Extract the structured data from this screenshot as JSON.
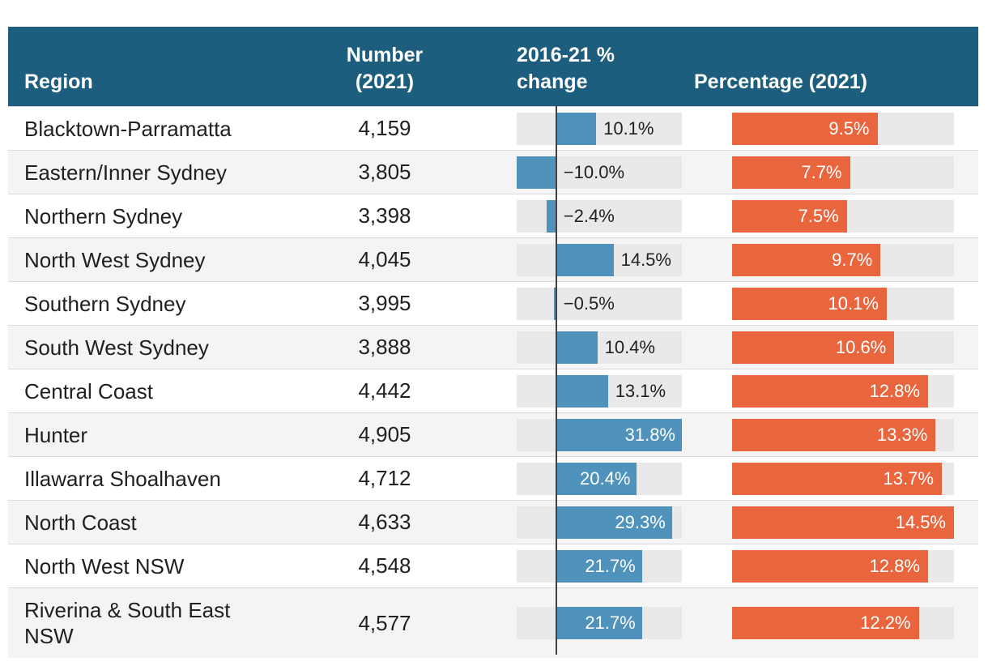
{
  "header": {
    "region": "Region",
    "number_line1": "Number",
    "number_line2": "(2021)",
    "change_line1": "2016-21 %",
    "change_line2": "change",
    "percentage": "Percentage (2021)"
  },
  "rows": [
    {
      "region": "Blacktown-Parramatta",
      "number": "4,159",
      "change": 10.1,
      "change_label": "10.1%",
      "percentage": 9.5,
      "percentage_label": "9.5%"
    },
    {
      "region": "Eastern/Inner Sydney",
      "number": "3,805",
      "change": -10.0,
      "change_label": "−10.0%",
      "percentage": 7.7,
      "percentage_label": "7.7%"
    },
    {
      "region": "Northern Sydney",
      "number": "3,398",
      "change": -2.4,
      "change_label": "−2.4%",
      "percentage": 7.5,
      "percentage_label": "7.5%"
    },
    {
      "region": "North West Sydney",
      "number": "4,045",
      "change": 14.5,
      "change_label": "14.5%",
      "percentage": 9.7,
      "percentage_label": "9.7%"
    },
    {
      "region": "Southern Sydney",
      "number": "3,995",
      "change": -0.5,
      "change_label": "−0.5%",
      "percentage": 10.1,
      "percentage_label": "10.1%"
    },
    {
      "region": "South West Sydney",
      "number": "3,888",
      "change": 10.4,
      "change_label": "10.4%",
      "percentage": 10.6,
      "percentage_label": "10.6%"
    },
    {
      "region": "Central Coast",
      "number": "4,442",
      "change": 13.1,
      "change_label": "13.1%",
      "percentage": 12.8,
      "percentage_label": "12.8%"
    },
    {
      "region": "Hunter",
      "number": "4,905",
      "change": 31.8,
      "change_label": "31.8%",
      "percentage": 13.3,
      "percentage_label": "13.3%"
    },
    {
      "region": "Illawarra Shoalhaven",
      "number": "4,712",
      "change": 20.4,
      "change_label": "20.4%",
      "percentage": 13.7,
      "percentage_label": "13.7%"
    },
    {
      "region": "North Coast",
      "number": "4,633",
      "change": 29.3,
      "change_label": "29.3%",
      "percentage": 14.5,
      "percentage_label": "14.5%"
    },
    {
      "region": "North West NSW",
      "number": "4,548",
      "change": 21.7,
      "change_label": "21.7%",
      "percentage": 12.8,
      "percentage_label": "12.8%"
    },
    {
      "region": "Riverina & South East NSW",
      "number": "4,577",
      "change": 21.7,
      "change_label": "21.7%",
      "percentage": 12.2,
      "percentage_label": "12.2%"
    }
  ],
  "scales": {
    "change_axis": {
      "min": -10.0,
      "max": 31.8,
      "zero_line": true
    },
    "percentage_axis": {
      "min": 0,
      "max": 14.5
    }
  },
  "colors": {
    "header_background": "#1d5e7e",
    "change_bar": "#4f93bc",
    "percentage_bar": "#e8653e",
    "bar_track": "#e9e9e9",
    "row_stripe": "#f4f4f4",
    "zero_line": "#414141",
    "text": "#202020"
  },
  "chart_data": {
    "type": "table",
    "title": "",
    "columns": [
      "Region",
      "Number (2021)",
      "2016-21 % change",
      "Percentage (2021)"
    ],
    "rows": [
      [
        "Blacktown-Parramatta",
        4159,
        10.1,
        9.5
      ],
      [
        "Eastern/Inner Sydney",
        3805,
        -10.0,
        7.7
      ],
      [
        "Northern Sydney",
        3398,
        -2.4,
        7.5
      ],
      [
        "North West Sydney",
        4045,
        14.5,
        9.7
      ],
      [
        "Southern Sydney",
        3995,
        -0.5,
        10.1
      ],
      [
        "South West Sydney",
        3888,
        10.4,
        10.6
      ],
      [
        "Central Coast",
        4442,
        13.1,
        12.8
      ],
      [
        "Hunter",
        4905,
        31.8,
        13.3
      ],
      [
        "Illawarra Shoalhaven",
        4712,
        20.4,
        13.7
      ],
      [
        "North Coast",
        4633,
        29.3,
        14.5
      ],
      [
        "North West NSW",
        4548,
        21.7,
        12.8
      ],
      [
        "Riverina & South East NSW",
        4577,
        21.7,
        12.2
      ]
    ],
    "embedded_bars": [
      {
        "column": "2016-21 % change",
        "type": "bar",
        "orientation": "horizontal",
        "range": [
          -10.0,
          31.8
        ],
        "zero_line": true,
        "color": "#4f93bc"
      },
      {
        "column": "Percentage (2021)",
        "type": "bar",
        "orientation": "horizontal",
        "range": [
          0,
          14.5
        ],
        "color": "#e8653e"
      }
    ],
    "legend": "none",
    "grid": false
  }
}
